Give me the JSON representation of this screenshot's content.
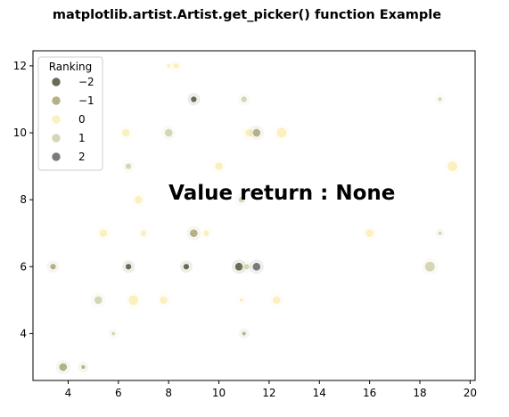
{
  "chart_data": {
    "type": "scatter",
    "title": "matplotlib.artist.Artist.get_picker() function Example",
    "xlabel": "",
    "ylabel": "",
    "xlim": [
      2.6,
      20.2
    ],
    "ylim": [
      2.6,
      12.45
    ],
    "xticks": [
      4,
      6,
      8,
      10,
      12,
      14,
      16,
      18,
      20
    ],
    "yticks": [
      4,
      6,
      8,
      10,
      12
    ],
    "xtick_labels": [
      "4",
      "6",
      "8",
      "10",
      "12",
      "14",
      "16",
      "18",
      "20"
    ],
    "ytick_labels": [
      "4",
      "6",
      "8",
      "10",
      "12"
    ],
    "grid": false,
    "annotation": {
      "text": "Value return : None",
      "x": 8,
      "y": 8
    },
    "legend": {
      "title": "Ranking",
      "placement": "top-left",
      "entries": [
        {
          "label": "−2",
          "color": "#6b6b55"
        },
        {
          "label": "−1",
          "color": "#b5b08a"
        },
        {
          "label": "0",
          "color": "#fbf0c0"
        },
        {
          "label": "1",
          "color": "#d6d5b6"
        },
        {
          "label": "2",
          "color": "#7a7a7a"
        }
      ]
    },
    "points": [
      {
        "x": 3.4,
        "y": 6.0,
        "rank": -1,
        "size": 2
      },
      {
        "x": 3.8,
        "y": 3.0,
        "rank": -1,
        "size": 3
      },
      {
        "x": 4.6,
        "y": 3.0,
        "rank": -1,
        "size": 1
      },
      {
        "x": 5.2,
        "y": 5.0,
        "rank": 1,
        "size": 3
      },
      {
        "x": 5.4,
        "y": 7.0,
        "rank": 0,
        "size": 3
      },
      {
        "x": 5.8,
        "y": 4.0,
        "rank": 1,
        "size": 1
      },
      {
        "x": 6.3,
        "y": 10.0,
        "rank": 0,
        "size": 3
      },
      {
        "x": 6.4,
        "y": 9.0,
        "rank": 1,
        "size": 2
      },
      {
        "x": 6.4,
        "y": 6.0,
        "rank": -2,
        "size": 2
      },
      {
        "x": 6.6,
        "y": 5.0,
        "rank": 0,
        "size": 4
      },
      {
        "x": 6.8,
        "y": 8.0,
        "rank": 0,
        "size": 3
      },
      {
        "x": 7.0,
        "y": 7.0,
        "rank": 0,
        "size": 2
      },
      {
        "x": 7.8,
        "y": 5.0,
        "rank": 0,
        "size": 3
      },
      {
        "x": 8.0,
        "y": 10.0,
        "rank": 1,
        "size": 3
      },
      {
        "x": 8.0,
        "y": 12.0,
        "rank": 0,
        "size": 1
      },
      {
        "x": 8.3,
        "y": 12.0,
        "rank": 0,
        "size": 2
      },
      {
        "x": 8.7,
        "y": 6.0,
        "rank": -2,
        "size": 2
      },
      {
        "x": 9.0,
        "y": 7.0,
        "rank": -1,
        "size": 3
      },
      {
        "x": 9.0,
        "y": 11.0,
        "rank": -2,
        "size": 2
      },
      {
        "x": 9.5,
        "y": 7.0,
        "rank": 0,
        "size": 2
      },
      {
        "x": 10.0,
        "y": 9.0,
        "rank": 0,
        "size": 3
      },
      {
        "x": 10.8,
        "y": 6.0,
        "rank": -2,
        "size": 3
      },
      {
        "x": 10.9,
        "y": 8.0,
        "rank": 1,
        "size": 2
      },
      {
        "x": 10.9,
        "y": 5.0,
        "rank": 0,
        "size": 1
      },
      {
        "x": 11.0,
        "y": 4.0,
        "rank": -1,
        "size": 1
      },
      {
        "x": 11.0,
        "y": 11.0,
        "rank": 1,
        "size": 2
      },
      {
        "x": 11.1,
        "y": 6.0,
        "rank": 1,
        "size": 2
      },
      {
        "x": 11.2,
        "y": 10.0,
        "rank": 0,
        "size": 3
      },
      {
        "x": 11.5,
        "y": 10.0,
        "rank": -1,
        "size": 3
      },
      {
        "x": 11.5,
        "y": 6.0,
        "rank": 2,
        "size": 3
      },
      {
        "x": 12.3,
        "y": 5.0,
        "rank": 0,
        "size": 3
      },
      {
        "x": 12.5,
        "y": 10.0,
        "rank": 0,
        "size": 4
      },
      {
        "x": 16.0,
        "y": 7.0,
        "rank": 0,
        "size": 3
      },
      {
        "x": 18.4,
        "y": 6.0,
        "rank": 1,
        "size": 4
      },
      {
        "x": 18.8,
        "y": 11.0,
        "rank": 1,
        "size": 1
      },
      {
        "x": 18.8,
        "y": 7.0,
        "rank": 1,
        "size": 1
      },
      {
        "x": 19.3,
        "y": 9.0,
        "rank": 0,
        "size": 4
      }
    ]
  }
}
